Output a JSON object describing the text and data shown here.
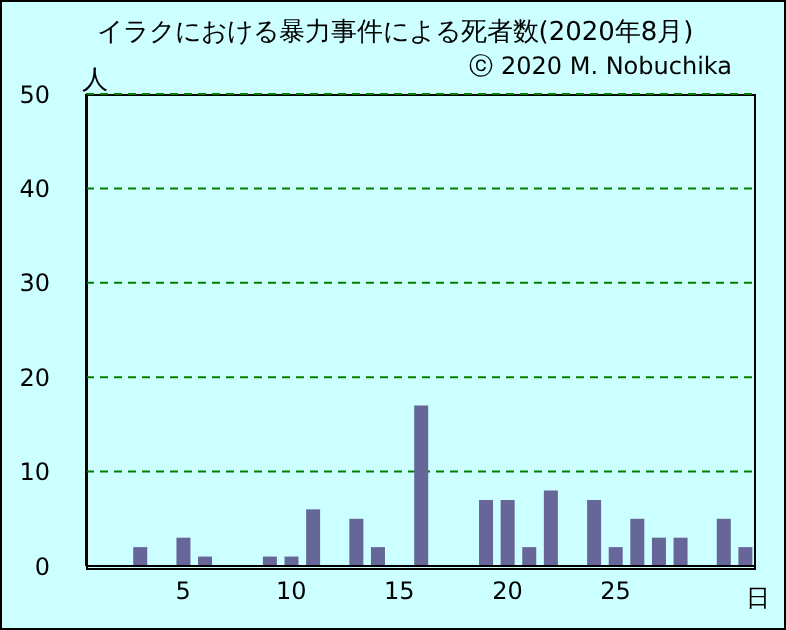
{
  "chart_data": {
    "type": "bar",
    "title": "イラクにおける暴力事件による死者数(2020年8月)",
    "annotations": [
      "ⓒ 2020 M. Nobuchika"
    ],
    "ylabel": "人",
    "xlabel": "日",
    "x": [
      1,
      2,
      3,
      4,
      5,
      6,
      7,
      8,
      9,
      10,
      11,
      12,
      13,
      14,
      15,
      16,
      17,
      18,
      19,
      20,
      21,
      22,
      23,
      24,
      25,
      26,
      27,
      28,
      29,
      30,
      31
    ],
    "values": [
      0,
      0,
      2,
      0,
      3,
      1,
      0,
      0,
      1,
      1,
      6,
      0,
      5,
      2,
      0,
      17,
      0,
      0,
      7,
      7,
      2,
      8,
      0,
      7,
      2,
      5,
      3,
      3,
      0,
      5,
      2
    ],
    "color": "#666699",
    "xlim": [
      0.5,
      31.5
    ],
    "xticks": [
      5,
      10,
      15,
      20,
      25
    ],
    "ylim": [
      0,
      50
    ],
    "yticks": [
      0,
      10,
      20,
      30,
      40,
      50
    ],
    "grid": "y"
  }
}
